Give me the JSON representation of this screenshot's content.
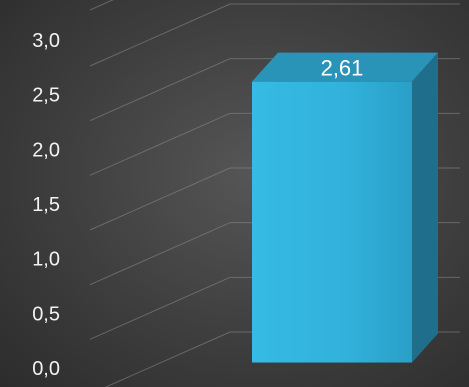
{
  "chart_data": {
    "type": "bar",
    "categories": [
      ""
    ],
    "values": [
      2.61
    ],
    "data_labels": [
      "2,61"
    ],
    "y_ticks": [
      0.0,
      0.5,
      1.0,
      1.5,
      2.0,
      2.5,
      3.0
    ],
    "y_tick_labels": [
      "0,0",
      "0,5",
      "1,0",
      "1,5",
      "2,0",
      "2,5",
      "3,0"
    ],
    "ylim": [
      0,
      3.0
    ],
    "grid": true,
    "style": "3d",
    "colors": {
      "bar_front": "#32b4de",
      "bar_top": "#2a93b8",
      "bar_side": "#1f6f8c",
      "grid": "#8c8c8c",
      "label": "#f2f2f2"
    }
  }
}
